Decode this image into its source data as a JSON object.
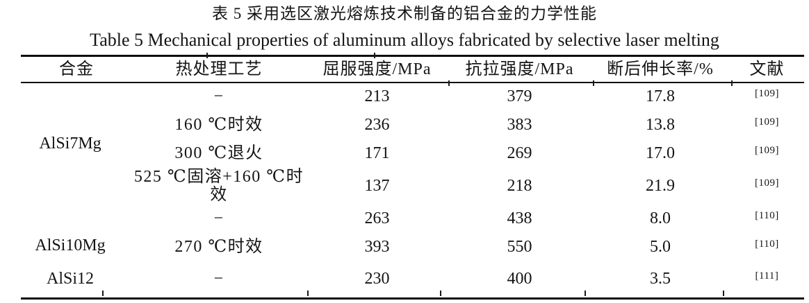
{
  "captions": {
    "zh": "表 5 采用选区激光熔炼技术制备的铝合金的力学性能",
    "en": "Table 5 Mechanical properties of aluminum alloys fabricated by selective laser melting"
  },
  "table": {
    "columns": [
      "合金",
      "热处理工艺",
      "屈服强度/MPa",
      "抗拉强度/MPa",
      "断后伸长率/%",
      "文献"
    ],
    "groups": [
      {
        "alloy": "AlSi7Mg",
        "rows": [
          {
            "treatment": "−",
            "yield_mpa": "213",
            "tensile_mpa": "379",
            "elongation_pct": "17.8",
            "ref": "[109]"
          },
          {
            "treatment": "160 ℃时效",
            "yield_mpa": "236",
            "tensile_mpa": "383",
            "elongation_pct": "13.8",
            "ref": "[109]"
          },
          {
            "treatment": "300 ℃退火",
            "yield_mpa": "171",
            "tensile_mpa": "269",
            "elongation_pct": "17.0",
            "ref": "[109]"
          },
          {
            "treatment": "525 ℃固溶+160 ℃时效",
            "yield_mpa": "137",
            "tensile_mpa": "218",
            "elongation_pct": "21.9",
            "ref": "[109]"
          }
        ]
      },
      {
        "alloy": "AlSi10Mg",
        "rows": [
          {
            "treatment": "−",
            "yield_mpa": "263",
            "tensile_mpa": "438",
            "elongation_pct": "8.0",
            "ref": "[110]"
          },
          {
            "treatment": "270 ℃时效",
            "yield_mpa": "393",
            "tensile_mpa": "550",
            "elongation_pct": "5.0",
            "ref": "[110]"
          }
        ]
      },
      {
        "alloy": "AlSi12",
        "rows": [
          {
            "treatment": "−",
            "yield_mpa": "230",
            "tensile_mpa": "400",
            "elongation_pct": "3.5",
            "ref": "[111]"
          }
        ]
      }
    ]
  },
  "colors": {
    "text": "#141414",
    "rule": "#0b0b0b",
    "background": "#ffffff"
  }
}
